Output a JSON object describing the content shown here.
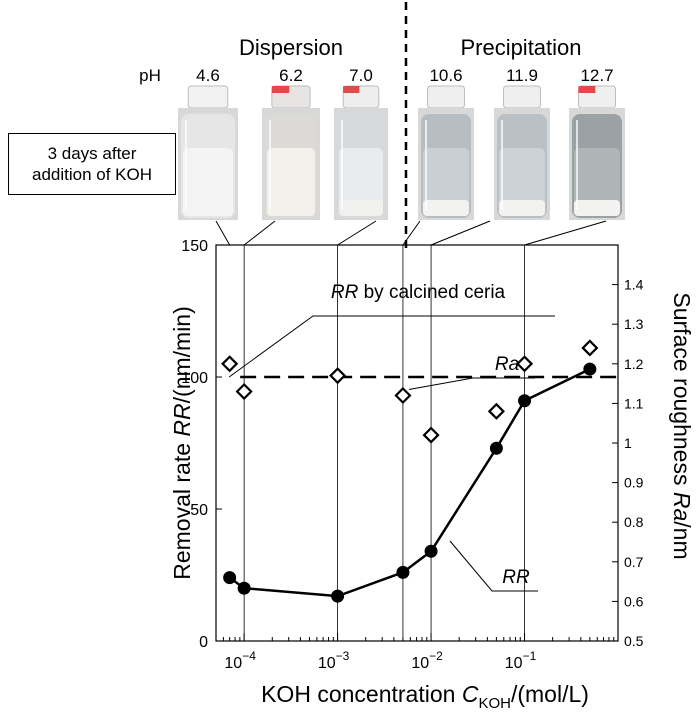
{
  "header": {
    "dispersion_label": "Dispersion",
    "precipitation_label": "Precipitation",
    "ph_label": "pH",
    "ph_values": [
      "4.6",
      "6.2",
      "7.0",
      "10.6",
      "11.9",
      "12.7"
    ]
  },
  "note": {
    "line1": "3 days after",
    "line2": "addition of KOH"
  },
  "vials": [
    {
      "liquid": "#f4f4f4",
      "body": "#e6e6e6",
      "sediment": "#f4f4f4",
      "cap": "#f2f2f2"
    },
    {
      "liquid": "#f3f1ec",
      "body": "#dcdad6",
      "sediment": "#f3f1ec",
      "cap": "#e8e4e4",
      "cap_accent": "#e24a4a"
    },
    {
      "liquid": "#e9ecef",
      "body": "#d6dadd",
      "sediment": "#f0f0ee",
      "cap": "#eeeeee",
      "cap_accent": "#e24a4a"
    },
    {
      "liquid": "#c9d0d4",
      "body": "#b6bec3",
      "sediment": "#f2f2f0",
      "cap": "#efefef"
    },
    {
      "liquid": "#ccd3d7",
      "body": "#b9c1c6",
      "sediment": "#f2f2f0",
      "cap": "#efefef"
    },
    {
      "liquid": "#aeb5b7",
      "body": "#9aa2a5",
      "sediment": "#f2f2f0",
      "cap": "#efefef",
      "cap_accent": "#e24a4a"
    }
  ],
  "chart_data": {
    "type": "scatter",
    "xlabel": "KOH concentration",
    "xlabel_symbol": "C",
    "xlabel_subscript": "KOH",
    "xlabel_unit": "/(mol/L)",
    "x_scale": "log",
    "xlim": [
      5e-05,
      1
    ],
    "x_ticks": [
      {
        "value": 0.0001,
        "base": "10",
        "exp": "−4"
      },
      {
        "value": 0.001,
        "base": "10",
        "exp": "−3"
      },
      {
        "value": 0.01,
        "base": "10",
        "exp": "−2"
      },
      {
        "value": 0.1,
        "base": "10",
        "exp": "−1"
      }
    ],
    "ylabel_left": "Removal rate",
    "ylabel_left_symbol": "RR",
    "ylabel_left_unit": "/(nm/min)",
    "ylim_left": [
      0,
      150
    ],
    "yticks_left": [
      0,
      50,
      100,
      150
    ],
    "ylabel_right": "Surface roughness",
    "ylabel_right_symbol": "Ra",
    "ylabel_right_unit": "/nm",
    "ylim_right": [
      0.5,
      1.5
    ],
    "yticks_right": [
      0.5,
      0.6,
      0.7,
      0.8,
      0.9,
      1.0,
      1.1,
      1.2,
      1.3,
      1.4
    ],
    "ytick_labels_right": [
      "0.5",
      "0.6",
      "0.7",
      "0.8",
      "0.9",
      "1",
      "1.1",
      "1.2",
      "1.3",
      "1.4"
    ],
    "grid_x": [
      0.0001,
      0.001,
      0.005,
      0.01,
      0.1
    ],
    "series": [
      {
        "name": "RR",
        "axis": "left",
        "marker": "filled-circle",
        "line": true,
        "x": [
          7e-05,
          0.0001,
          0.001,
          0.005,
          0.01,
          0.05,
          0.1,
          0.5
        ],
        "y": [
          24,
          20,
          17,
          26,
          34,
          73,
          91,
          103
        ]
      },
      {
        "name": "Ra",
        "axis": "right",
        "marker": "open-diamond",
        "line": false,
        "x": [
          7e-05,
          0.0001,
          0.001,
          0.005,
          0.01,
          0.05,
          0.1,
          0.5
        ],
        "y": [
          1.2,
          1.13,
          1.17,
          1.12,
          1.02,
          1.08,
          1.2,
          1.24
        ]
      }
    ],
    "reference_line": {
      "label_symbol": "RR",
      "label_text": " by calcined ceria",
      "value": 100,
      "axis": "left",
      "style": "dashed"
    },
    "annotations": [
      {
        "text": "Ra",
        "italic": true,
        "target": "Ra"
      },
      {
        "text": "RR",
        "italic": true,
        "target": "RR"
      }
    ],
    "divider_x": 0.005
  }
}
